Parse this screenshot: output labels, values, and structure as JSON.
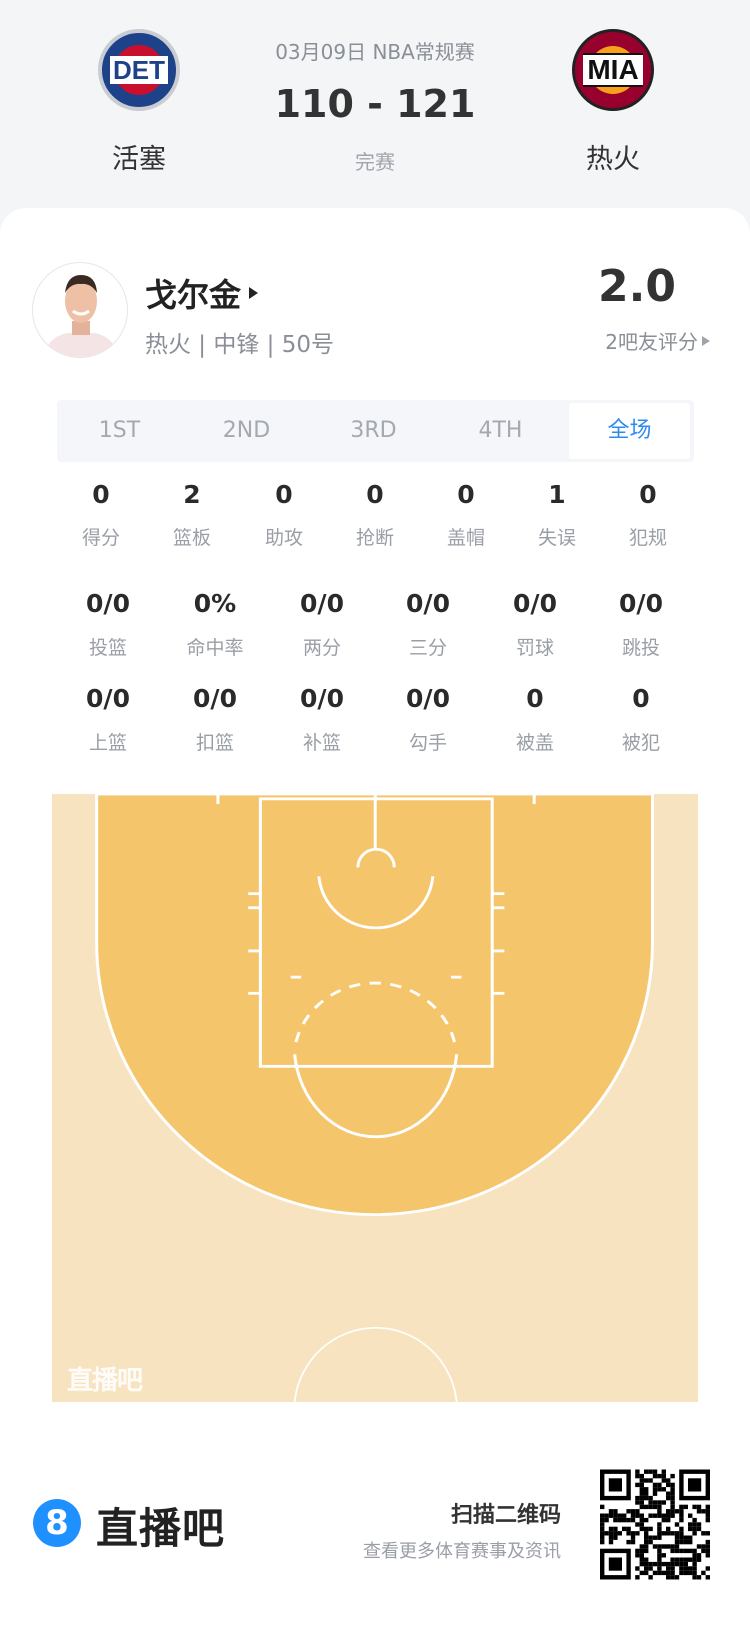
{
  "header": {
    "date_league": "03月09日 NBA常规赛",
    "score": "110 - 121",
    "status": "完赛",
    "home": {
      "abbr": "DET",
      "name": "活塞",
      "colors": [
        "#1d428a",
        "#c8102e"
      ]
    },
    "away": {
      "abbr": "MIA",
      "name": "热火",
      "colors": [
        "#98002e",
        "#f9a01b"
      ]
    }
  },
  "player": {
    "name": "戈尔金",
    "info": "热火 | 中锋 | 50号",
    "rating": "2.0",
    "rating_label": "2吧友评分"
  },
  "tabs": [
    {
      "label": "1ST"
    },
    {
      "label": "2ND"
    },
    {
      "label": "3RD"
    },
    {
      "label": "4TH"
    },
    {
      "label": "全场",
      "active": true
    }
  ],
  "accent": "#2d8cf0",
  "stats_row1": [
    {
      "value": "0",
      "label": "得分"
    },
    {
      "value": "2",
      "label": "篮板"
    },
    {
      "value": "0",
      "label": "助攻"
    },
    {
      "value": "0",
      "label": "抢断"
    },
    {
      "value": "0",
      "label": "盖帽"
    },
    {
      "value": "1",
      "label": "失误"
    },
    {
      "value": "0",
      "label": "犯规"
    }
  ],
  "stats_row2": [
    {
      "value": "0/0",
      "label": "投篮"
    },
    {
      "value": "0%",
      "label": "命中率"
    },
    {
      "value": "0/0",
      "label": "两分"
    },
    {
      "value": "0/0",
      "label": "三分"
    },
    {
      "value": "0/0",
      "label": "罚球"
    },
    {
      "value": "0/0",
      "label": "跳投"
    }
  ],
  "stats_row3": [
    {
      "value": "0/0",
      "label": "上篮"
    },
    {
      "value": "0/0",
      "label": "扣篮"
    },
    {
      "value": "0/0",
      "label": "补篮"
    },
    {
      "value": "0/0",
      "label": "勾手"
    },
    {
      "value": "0",
      "label": "被盖"
    },
    {
      "value": "0",
      "label": "被犯"
    }
  ],
  "court": {
    "watermark": "直播吧",
    "colors": {
      "outer": "#f8e3c0",
      "inner": "#f5c56c"
    }
  },
  "footer": {
    "brand": "直播吧",
    "brand_mark": "8",
    "scan_title": "扫描二维码",
    "scan_sub": "查看更多体育赛事及资讯"
  }
}
